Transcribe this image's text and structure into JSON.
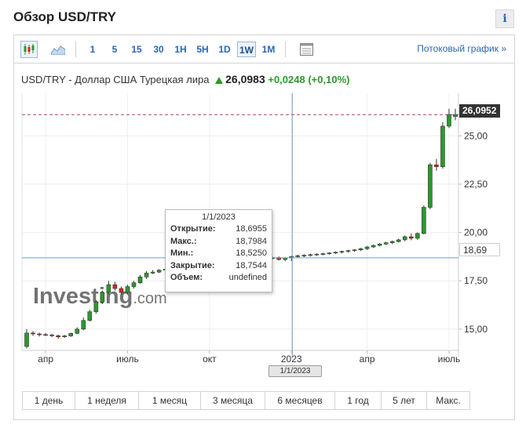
{
  "page": {
    "title": "Обзор USD/TRY",
    "info_glyph": "i"
  },
  "toolbar": {
    "chart_type_icons": [
      "candlestick-icon",
      "area-chart-icon"
    ],
    "periods": [
      "1",
      "5",
      "15",
      "30",
      "1H",
      "5H",
      "1D",
      "1W",
      "1M"
    ],
    "active_period": "1W",
    "settings_icon": "table-icon",
    "stream_link": "Потоковый график »"
  },
  "quote": {
    "name": "USD/TRY - Доллар США Турецкая лира",
    "price": "26,0983",
    "change": "+0,0248",
    "change_pct": "(+0,10%)",
    "up_color": "#2a9a2a"
  },
  "tooltip": {
    "date": "1/1/2023",
    "rows": [
      {
        "label": "Открытие:",
        "value": "18,6955"
      },
      {
        "label": "Макс.:",
        "value": "18,7984"
      },
      {
        "label": "Мин.:",
        "value": "18,5250"
      },
      {
        "label": "Закрытие:",
        "value": "18,7544"
      },
      {
        "label": "Объем:",
        "value": "undefined"
      }
    ]
  },
  "crosshair": {
    "price_label": "18,69",
    "date_label": "1/1/2023",
    "price": 18.69
  },
  "last_price_label": "26,0952",
  "watermark": "Investing.com",
  "ranges": [
    "1 день",
    "1 неделя",
    "1 месяц",
    "3 месяца",
    "6 месяцев",
    "1 год",
    "5 лет",
    "Макс."
  ],
  "chart_data": {
    "type": "candlestick",
    "y_ticks": [
      "25,00",
      "22,50",
      "20,00",
      "17,50",
      "15,00"
    ],
    "y_tick_values": [
      25,
      22.5,
      20,
      17.5,
      15
    ],
    "ylim": [
      13.9,
      27.2
    ],
    "x_tick_labels": [
      "апр",
      "июль",
      "окт",
      "2023",
      "апр",
      "июль"
    ],
    "x_tick_index": [
      3,
      16,
      29,
      42,
      54,
      67
    ],
    "last_price": 26.0952,
    "up_color": "#2a9a2a",
    "down_color": "#d9251d",
    "candles": [
      {
        "o": 14.1,
        "h": 15.0,
        "l": 14.0,
        "c": 14.8
      },
      {
        "o": 14.8,
        "h": 14.9,
        "l": 14.65,
        "c": 14.75
      },
      {
        "o": 14.75,
        "h": 14.82,
        "l": 14.62,
        "c": 14.72
      },
      {
        "o": 14.72,
        "h": 14.8,
        "l": 14.65,
        "c": 14.7
      },
      {
        "o": 14.7,
        "h": 14.75,
        "l": 14.58,
        "c": 14.66
      },
      {
        "o": 14.66,
        "h": 14.72,
        "l": 14.5,
        "c": 14.6
      },
      {
        "o": 14.6,
        "h": 14.7,
        "l": 14.55,
        "c": 14.65
      },
      {
        "o": 14.65,
        "h": 14.82,
        "l": 14.6,
        "c": 14.78
      },
      {
        "o": 14.78,
        "h": 15.1,
        "l": 14.74,
        "c": 15.0
      },
      {
        "o": 15.0,
        "h": 15.6,
        "l": 14.95,
        "c": 15.45
      },
      {
        "o": 15.45,
        "h": 16.0,
        "l": 15.4,
        "c": 15.9
      },
      {
        "o": 15.9,
        "h": 16.5,
        "l": 15.8,
        "c": 16.4
      },
      {
        "o": 16.4,
        "h": 17.0,
        "l": 16.3,
        "c": 16.9
      },
      {
        "o": 16.9,
        "h": 17.5,
        "l": 16.8,
        "c": 17.3
      },
      {
        "o": 17.3,
        "h": 17.45,
        "l": 17.0,
        "c": 17.1
      },
      {
        "o": 17.1,
        "h": 17.2,
        "l": 16.8,
        "c": 16.9
      },
      {
        "o": 16.9,
        "h": 17.3,
        "l": 16.8,
        "c": 17.2
      },
      {
        "o": 17.2,
        "h": 17.5,
        "l": 17.1,
        "c": 17.4
      },
      {
        "o": 17.4,
        "h": 17.8,
        "l": 17.35,
        "c": 17.7
      },
      {
        "o": 17.7,
        "h": 18.0,
        "l": 17.6,
        "c": 17.9
      },
      {
        "o": 17.9,
        "h": 18.05,
        "l": 17.85,
        "c": 17.95
      },
      {
        "o": 17.95,
        "h": 18.1,
        "l": 17.9,
        "c": 18.05
      },
      {
        "o": 18.05,
        "h": 18.15,
        "l": 18.0,
        "c": 18.1
      },
      {
        "o": 18.1,
        "h": 18.2,
        "l": 18.05,
        "c": 18.15
      },
      {
        "o": 18.15,
        "h": 18.22,
        "l": 18.1,
        "c": 18.2
      },
      {
        "o": 18.2,
        "h": 18.3,
        "l": 18.15,
        "c": 18.25
      },
      {
        "o": 18.25,
        "h": 18.32,
        "l": 18.2,
        "c": 18.3
      },
      {
        "o": 18.3,
        "h": 18.38,
        "l": 18.25,
        "c": 18.35
      },
      {
        "o": 18.35,
        "h": 18.42,
        "l": 18.3,
        "c": 18.38
      },
      {
        "o": 18.38,
        "h": 18.45,
        "l": 18.33,
        "c": 18.42
      },
      {
        "o": 18.42,
        "h": 18.5,
        "l": 18.38,
        "c": 18.46
      },
      {
        "o": 18.46,
        "h": 18.54,
        "l": 18.4,
        "c": 18.5
      },
      {
        "o": 18.5,
        "h": 18.58,
        "l": 18.45,
        "c": 18.53
      },
      {
        "o": 18.53,
        "h": 18.6,
        "l": 18.48,
        "c": 18.55
      },
      {
        "o": 18.55,
        "h": 18.62,
        "l": 18.5,
        "c": 18.58
      },
      {
        "o": 18.58,
        "h": 18.64,
        "l": 18.52,
        "c": 18.6
      },
      {
        "o": 18.6,
        "h": 18.66,
        "l": 18.55,
        "c": 18.62
      },
      {
        "o": 18.62,
        "h": 18.7,
        "l": 18.56,
        "c": 18.65
      },
      {
        "o": 18.65,
        "h": 18.72,
        "l": 18.58,
        "c": 18.68
      },
      {
        "o": 18.68,
        "h": 18.74,
        "l": 18.6,
        "c": 18.7
      },
      {
        "o": 18.7,
        "h": 18.76,
        "l": 18.55,
        "c": 18.6
      },
      {
        "o": 18.6,
        "h": 18.72,
        "l": 18.52,
        "c": 18.69
      },
      {
        "o": 18.6955,
        "h": 18.7984,
        "l": 18.525,
        "c": 18.7544
      },
      {
        "o": 18.75,
        "h": 18.85,
        "l": 18.7,
        "c": 18.8
      },
      {
        "o": 18.8,
        "h": 18.88,
        "l": 18.72,
        "c": 18.82
      },
      {
        "o": 18.82,
        "h": 18.9,
        "l": 18.75,
        "c": 18.85
      },
      {
        "o": 18.85,
        "h": 18.92,
        "l": 18.78,
        "c": 18.88
      },
      {
        "o": 18.88,
        "h": 18.95,
        "l": 18.82,
        "c": 18.9
      },
      {
        "o": 18.9,
        "h": 18.98,
        "l": 18.85,
        "c": 18.94
      },
      {
        "o": 18.94,
        "h": 19.02,
        "l": 18.88,
        "c": 18.98
      },
      {
        "o": 18.98,
        "h": 19.06,
        "l": 18.92,
        "c": 19.02
      },
      {
        "o": 19.02,
        "h": 19.1,
        "l": 18.96,
        "c": 19.06
      },
      {
        "o": 19.06,
        "h": 19.14,
        "l": 19.0,
        "c": 19.1
      },
      {
        "o": 19.1,
        "h": 19.2,
        "l": 19.04,
        "c": 19.16
      },
      {
        "o": 19.16,
        "h": 19.3,
        "l": 19.1,
        "c": 19.25
      },
      {
        "o": 19.25,
        "h": 19.38,
        "l": 19.2,
        "c": 19.33
      },
      {
        "o": 19.33,
        "h": 19.45,
        "l": 19.28,
        "c": 19.4
      },
      {
        "o": 19.4,
        "h": 19.52,
        "l": 19.35,
        "c": 19.47
      },
      {
        "o": 19.47,
        "h": 19.58,
        "l": 19.4,
        "c": 19.53
      },
      {
        "o": 19.53,
        "h": 19.68,
        "l": 19.48,
        "c": 19.62
      },
      {
        "o": 19.62,
        "h": 19.85,
        "l": 19.55,
        "c": 19.78
      },
      {
        "o": 19.78,
        "h": 19.95,
        "l": 19.6,
        "c": 19.7
      },
      {
        "o": 19.7,
        "h": 20.0,
        "l": 19.62,
        "c": 19.95
      },
      {
        "o": 19.95,
        "h": 21.4,
        "l": 19.9,
        "c": 21.3
      },
      {
        "o": 21.3,
        "h": 23.6,
        "l": 21.2,
        "c": 23.5
      },
      {
        "o": 23.5,
        "h": 23.8,
        "l": 23.2,
        "c": 23.4
      },
      {
        "o": 23.4,
        "h": 25.7,
        "l": 23.3,
        "c": 25.5
      },
      {
        "o": 25.5,
        "h": 26.4,
        "l": 25.4,
        "c": 26.1
      },
      {
        "o": 26.0,
        "h": 26.4,
        "l": 25.8,
        "c": 26.0952
      }
    ]
  }
}
